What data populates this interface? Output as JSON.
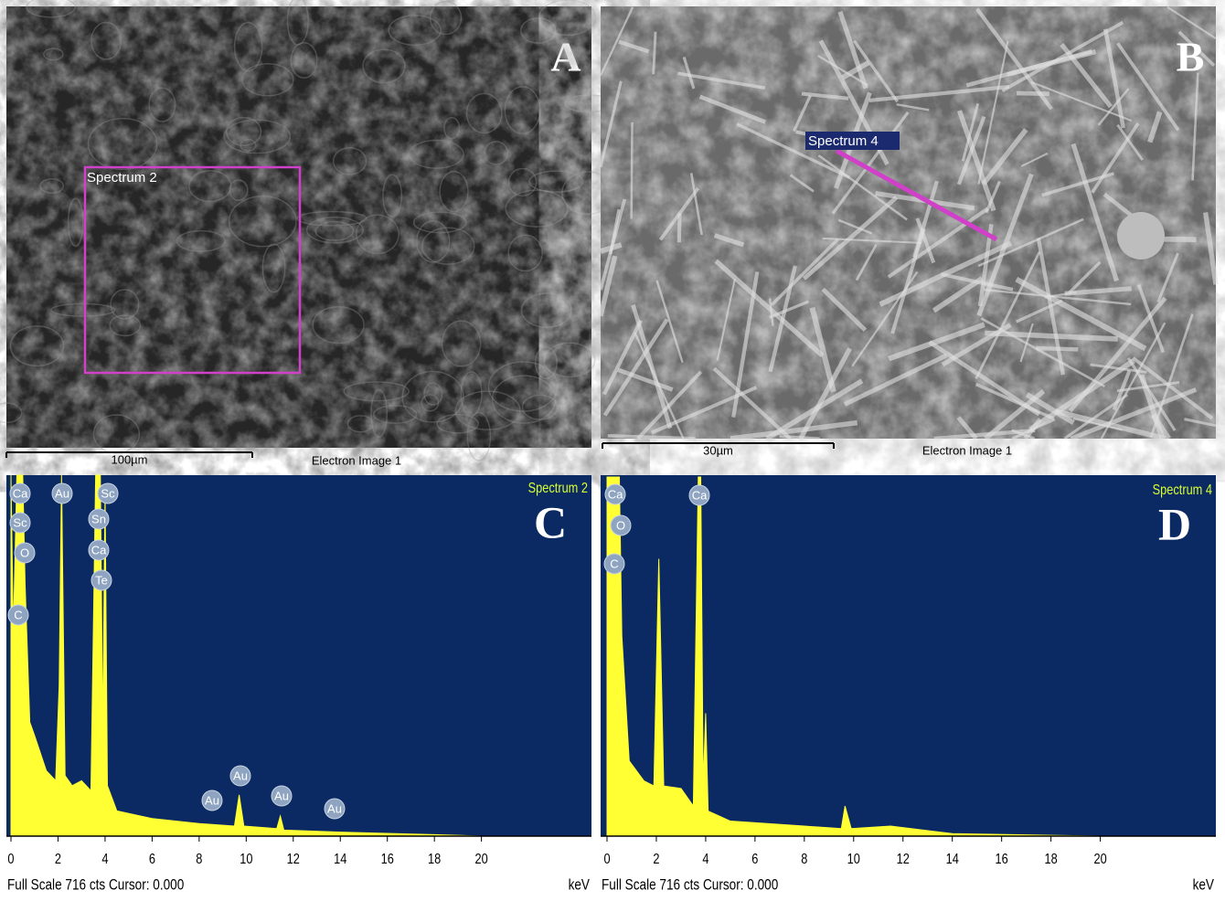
{
  "images": [
    {
      "letter": "A",
      "spectrum_label": "Spectrum 2",
      "scale_bar": "100µm",
      "caption": "Electron Image 1"
    },
    {
      "letter": "B",
      "spectrum_label": "Spectrum 4",
      "scale_bar": "30µm",
      "caption": "Electron Image 1"
    }
  ],
  "chart_data": [
    {
      "type": "area",
      "letter": "C",
      "title": "Spectrum 2",
      "footer": "Full Scale 716 cts Cursor: 0.000",
      "x_unit": "keV",
      "color": "#ffff33",
      "xlim": [
        0,
        24.6
      ],
      "ylim": [
        0,
        716
      ],
      "xticks": [
        0,
        2,
        4,
        6,
        8,
        10,
        12,
        14,
        16,
        18,
        20
      ],
      "x": [
        0,
        0.1,
        0.25,
        0.4,
        0.5,
        0.6,
        0.8,
        1.0,
        1.5,
        1.9,
        2.05,
        2.15,
        2.3,
        2.6,
        3.0,
        3.4,
        3.6,
        3.7,
        3.8,
        3.9,
        4.0,
        4.1,
        4.5,
        6,
        8,
        9.5,
        9.7,
        9.9,
        11.3,
        11.45,
        11.6,
        14,
        18,
        20
      ],
      "values": [
        716,
        400,
        716,
        716,
        716,
        500,
        226,
        200,
        130,
        110,
        300,
        716,
        120,
        100,
        110,
        90,
        716,
        716,
        716,
        200,
        680,
        100,
        50,
        35,
        25,
        20,
        82,
        20,
        15,
        40,
        12,
        8,
        3,
        0
      ],
      "annotations": [
        "Ca",
        "Sc",
        "O",
        "C",
        "Au",
        "Sc",
        "Sn",
        "Ca",
        "Te",
        "Au",
        "Au",
        "Au",
        "Au"
      ]
    },
    {
      "type": "area",
      "letter": "D",
      "title": "Spectrum 4",
      "footer": "Full Scale 716 cts Cursor: 0.000",
      "x_unit": "keV",
      "color": "#ffff33",
      "xlim": [
        0,
        24.5
      ],
      "ylim": [
        0,
        716
      ],
      "xticks": [
        0,
        2,
        4,
        6,
        8,
        10,
        12,
        14,
        16,
        18,
        20
      ],
      "x": [
        0,
        0.2,
        0.35,
        0.5,
        0.6,
        0.9,
        1.5,
        1.9,
        2.1,
        2.3,
        3.0,
        3.5,
        3.7,
        3.8,
        3.9,
        4.0,
        4.1,
        5,
        8,
        9.5,
        9.65,
        9.9,
        11.5,
        14,
        20
      ],
      "values": [
        716,
        716,
        716,
        716,
        400,
        150,
        110,
        100,
        553,
        100,
        95,
        60,
        716,
        716,
        100,
        245,
        50,
        30,
        20,
        15,
        60,
        15,
        20,
        5,
        0
      ],
      "annotations": [
        "Ca",
        "O",
        "C",
        "Ca"
      ]
    }
  ]
}
